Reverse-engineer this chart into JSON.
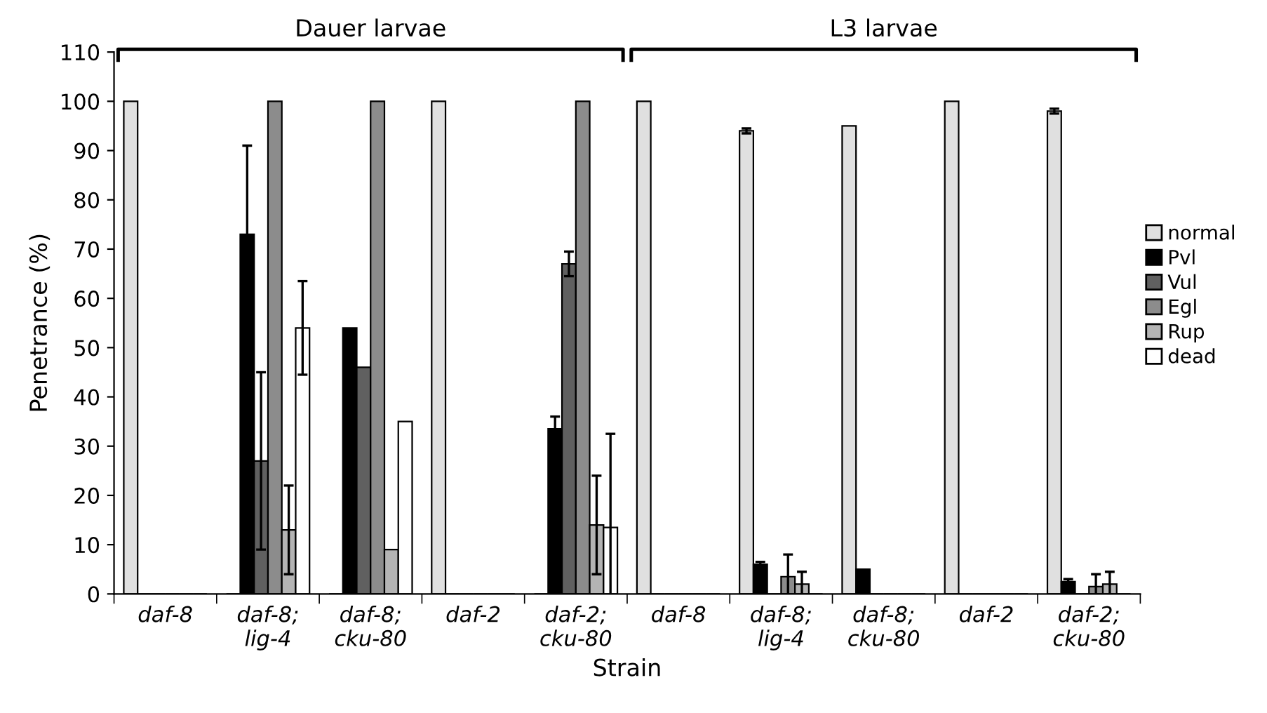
{
  "chart_data": {
    "type": "bar",
    "xlabel": "Strain",
    "ylabel": "Penetrance (%)",
    "categories": [
      "daf-8",
      "daf-8;\nlig-4",
      "daf-8;\ncku-80",
      "daf-2",
      "daf-2;\ncku-80",
      "daf-8",
      "daf-8;\nlig-4",
      "daf-8;\ncku-80",
      "daf-2",
      "daf-2;\ncku-80"
    ],
    "series": [
      {
        "name": "normal",
        "color": "#e0e0e0",
        "values": [
          100,
          0,
          0,
          100,
          0,
          100,
          94,
          95,
          100,
          98
        ],
        "errors": [
          null,
          null,
          null,
          null,
          null,
          null,
          0.5,
          null,
          null,
          0.5
        ]
      },
      {
        "name": "Pvl",
        "color": "#000000",
        "values": [
          0,
          73,
          54,
          0,
          33.5,
          0,
          6,
          5,
          0,
          2.5
        ],
        "errors": [
          null,
          18,
          null,
          null,
          2.5,
          null,
          0.5,
          null,
          null,
          0.5
        ]
      },
      {
        "name": "Vul",
        "color": "#606060",
        "values": [
          0,
          27,
          46,
          0,
          67,
          0,
          0,
          0,
          0,
          0
        ],
        "errors": [
          null,
          18,
          null,
          null,
          2.5,
          null,
          null,
          null,
          null,
          null
        ]
      },
      {
        "name": "Egl",
        "color": "#8c8c8c",
        "values": [
          0,
          100,
          100,
          0,
          100,
          0,
          3.5,
          0,
          0,
          1.5
        ],
        "errors": [
          null,
          null,
          null,
          null,
          null,
          null,
          4.5,
          null,
          null,
          2.5
        ]
      },
      {
        "name": "Rup",
        "color": "#b4b4b4",
        "values": [
          0,
          13,
          9,
          0,
          14,
          0,
          2,
          0,
          0,
          2
        ],
        "errors": [
          null,
          9,
          null,
          null,
          10,
          null,
          2.5,
          null,
          null,
          2.5
        ]
      },
      {
        "name": "dead",
        "color": "#ffffff",
        "values": [
          0,
          54,
          35,
          0,
          13.5,
          0,
          0,
          0,
          0,
          0
        ],
        "errors": [
          null,
          9.5,
          null,
          null,
          19,
          null,
          null,
          null,
          null,
          null
        ]
      }
    ],
    "ylim": [
      0,
      110
    ],
    "yticks": [
      0,
      10,
      20,
      30,
      40,
      50,
      60,
      70,
      80,
      90,
      100,
      110
    ],
    "legend": "right",
    "grid": false,
    "annotations": [
      "Dauer larvae",
      "L3 larvae"
    ]
  }
}
